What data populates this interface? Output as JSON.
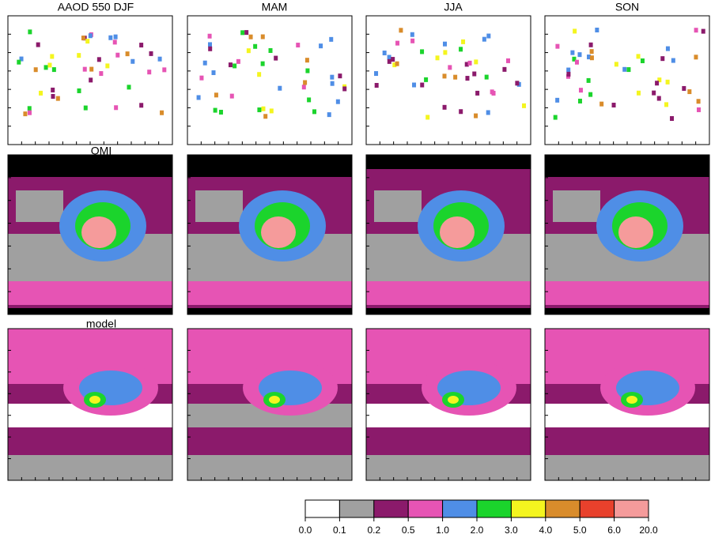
{
  "panels": {
    "titles": [
      "AAOD 550 DJF",
      "MAM",
      "JJA",
      "SON"
    ],
    "row_labels": [
      "OMI",
      "model"
    ]
  },
  "colorbar": {
    "colors": [
      "#ffffff",
      "#a0a0a0",
      "#8b1a6b",
      "#e654b4",
      "#4f8ee6",
      "#1bd42c",
      "#f4f51f",
      "#d98c2b",
      "#e8412c",
      "#f59b9b"
    ],
    "ticks": [
      {
        "value": 0,
        "label": "0.0"
      },
      {
        "value": 0.1,
        "label": "0.1"
      },
      {
        "value": 0.2,
        "label": "0.2"
      },
      {
        "value": 0.5,
        "label": "0.5"
      },
      {
        "value": 1,
        "label": "1.0"
      },
      {
        "value": 2,
        "label": "2.0"
      },
      {
        "value": 3,
        "label": "3.0"
      },
      {
        "value": 4,
        "label": "4.0"
      },
      {
        "value": 5,
        "label": "5.0"
      },
      {
        "value": 6,
        "label": "6.0"
      },
      {
        "value": 20,
        "label": "20.0"
      }
    ]
  }
}
